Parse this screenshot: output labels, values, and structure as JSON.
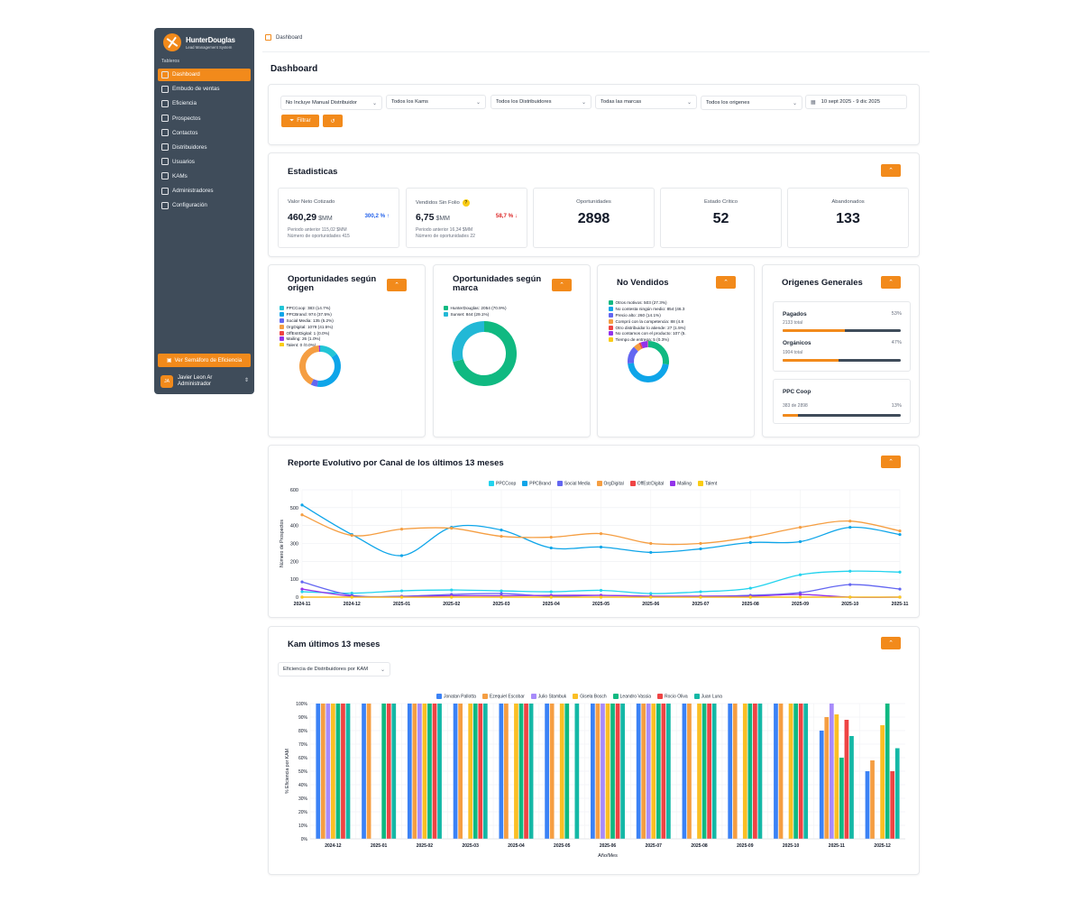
{
  "sidebar": {
    "brand_name": "HunterDouglas",
    "brand_sub": "Lead Management System",
    "section": "Tableros",
    "items": [
      {
        "label": "Dashboard",
        "icon": "dashboard-icon"
      },
      {
        "label": "Embudo de ventas",
        "icon": "filter-icon"
      },
      {
        "label": "Eficiencia",
        "icon": "trending-up-icon"
      },
      {
        "label": "Prospectos",
        "icon": "id-card-icon"
      },
      {
        "label": "Contactos",
        "icon": "contacts-icon"
      },
      {
        "label": "Distribuidores",
        "icon": "map-icon"
      },
      {
        "label": "Usuarios",
        "icon": "users-icon"
      },
      {
        "label": "KAMs",
        "icon": "user-icon"
      },
      {
        "label": "Administradores",
        "icon": "user-cog-icon"
      },
      {
        "label": "Configuración",
        "icon": "gear-icon"
      }
    ],
    "semaforo_label": "Ver Semáforo de Eficiencia",
    "user": {
      "initials": "JA",
      "name": "Javier Leon Ar",
      "role": "Administrador"
    }
  },
  "header": {
    "breadcrumb": "Dashboard",
    "title": "Dashboard"
  },
  "filters": {
    "items": [
      "No Incluye Manual Distribuidor",
      "Todos los Kams",
      "Todos los Distribuidores",
      "Todas las marcas",
      "Todos los origenes"
    ],
    "date_range": "10 sept 2025 - 9 dic 2025",
    "filter_label": "Filtrar"
  },
  "stats": {
    "title": "Estadisticas",
    "cards": [
      {
        "label": "Valor Neto Cotizado",
        "value": "460,29",
        "unit": "$MM",
        "change": "300,2 %",
        "change_color": "#2563eb",
        "arrow": "↑",
        "prev": "Periodo anterior 115,02 $MM",
        "ops": "Número de oportunidades 415"
      },
      {
        "label": "Vendidos Sin Folio",
        "badge": "?",
        "value": "6,75",
        "unit": "$MM",
        "change": "58,7 %",
        "change_color": "#dc2626",
        "arrow": "↓",
        "prev": "Periodo anterior 16,34 $MM",
        "ops": "Número de oportunidades 22"
      },
      {
        "label": "Oportunidades",
        "value": "2898"
      },
      {
        "label": "Estado Crítico",
        "value": "52"
      },
      {
        "label": "Abandonados",
        "value": "133"
      }
    ]
  },
  "oportunidades_origen": {
    "title_line1": "Oportunidades según",
    "title_line2": "origen",
    "legend": [
      {
        "label": "PPCCoop: 383 (14.7%)",
        "color": "#22c5d6",
        "value": 383
      },
      {
        "label": "PPCBrand: 974 (37.5%)",
        "color": "#0ea5e9",
        "value": 974
      },
      {
        "label": "Social Media: 135 (5.2%)",
        "color": "#6366f1",
        "value": 135
      },
      {
        "label": "OrgDigital: 1079 (41.5%)",
        "color": "#f59e42",
        "value": 1079
      },
      {
        "label": "OffEstrDigital: 1 (0.0%)",
        "color": "#ef4444",
        "value": 1
      },
      {
        "label": "Mailing: 26 (1.0%)",
        "color": "#9333ea",
        "value": 26
      },
      {
        "label": "Talent: 0 (0.0%)",
        "color": "#facc15",
        "value": 0
      }
    ]
  },
  "oportunidades_marca": {
    "title_line1": "Oportunidades según",
    "title_line2": "marca",
    "legend": [
      {
        "label": "HunterDouglas: 2054 (70.9%)",
        "color": "#10b981",
        "value": 2054
      },
      {
        "label": "Sunset: 844 (29.1%)",
        "color": "#22b8d6",
        "value": 844
      }
    ]
  },
  "no_vendidos": {
    "title": "No Vendidos",
    "legend": [
      {
        "label": "Otros motivos: 503 (27.3%)",
        "color": "#10b981",
        "value": 503
      },
      {
        "label": "No contesta ningún medio: 854 (46.3",
        "color": "#0ea5e9",
        "value": 854
      },
      {
        "label": "Precio alto: 260 (14.1%)",
        "color": "#6366f1",
        "value": 260
      },
      {
        "label": "Compró con la competencia: 88 (4.8",
        "color": "#f59e42",
        "value": 88
      },
      {
        "label": "Otro distribuidor lo atiende: 27 (1.5%)",
        "color": "#ef4444",
        "value": 27
      },
      {
        "label": "No contamos con el producto: 107 (5.",
        "color": "#9333ea",
        "value": 107
      },
      {
        "label": "Tiempo de entrega: 5 (0.3%)",
        "color": "#facc15",
        "value": 5
      }
    ]
  },
  "origenes": {
    "title": "Origenes Generales",
    "rows": [
      {
        "name": "Pagados",
        "pct": "53%",
        "total": "2133 total",
        "fill": 0.53
      },
      {
        "name": "Orgánicos",
        "pct": "47%",
        "total": "1904 total",
        "fill": 0.47
      }
    ],
    "coop": {
      "name": "PPC Coop",
      "detail": "383 de 2898",
      "pct": "13%",
      "fill": 0.13
    }
  },
  "evolutivo": {
    "title": "Reporte Evolutivo por Canal de los últimos 13 meses",
    "ylabel": "Número de Prospectos",
    "y_ticks": [
      "0",
      "100",
      "200",
      "300",
      "400",
      "500",
      "600"
    ],
    "categories": [
      "2024-11",
      "2024-12",
      "2025-01",
      "2025-02",
      "2025-03",
      "2025-04",
      "2025-05",
      "2025-06",
      "2025-07",
      "2025-08",
      "2025-09",
      "2025-10",
      "2025-11"
    ]
  },
  "kam": {
    "title": "Kam últimos 13 meses",
    "select": "Eficiencia de Distribuidores por KAM",
    "ylabel": "% Eficiencia por KAM",
    "xlabel": "Año/Mes",
    "y_ticks": [
      "0%",
      "10%",
      "20%",
      "30%",
      "40%",
      "50%",
      "60%",
      "70%",
      "80%",
      "90%",
      "100%"
    ],
    "categories": [
      "2024-12",
      "2025-01",
      "2025-02",
      "2025-03",
      "2025-04",
      "2025-05",
      "2025-06",
      "2025-07",
      "2025-08",
      "2025-09",
      "2025-10",
      "2025-11",
      "2025-12"
    ]
  },
  "chart_data": [
    {
      "type": "line",
      "title": "Reporte Evolutivo por Canal de los últimos 13 meses",
      "xlabel": "",
      "ylabel": "Número de Prospectos",
      "ylim": [
        0,
        600
      ],
      "grid": true,
      "legend_placement": "top",
      "x": [
        "2024-11",
        "2024-12",
        "2025-01",
        "2025-02",
        "2025-03",
        "2025-04",
        "2025-05",
        "2025-06",
        "2025-07",
        "2025-08",
        "2025-09",
        "2025-10",
        "2025-11"
      ],
      "series": [
        {
          "name": "PPCCoop",
          "color": "#22d3ee",
          "values": [
            30,
            22,
            35,
            40,
            35,
            30,
            38,
            20,
            30,
            50,
            125,
            145,
            140
          ]
        },
        {
          "name": "PPCBrand",
          "color": "#0ea5e9",
          "values": [
            515,
            350,
            232,
            390,
            375,
            275,
            280,
            250,
            270,
            305,
            310,
            390,
            350
          ]
        },
        {
          "name": "Social Media",
          "color": "#6366f1",
          "values": [
            85,
            10,
            5,
            15,
            20,
            5,
            10,
            5,
            5,
            10,
            25,
            70,
            45
          ]
        },
        {
          "name": "OrgDigital",
          "color": "#f59e42",
          "values": [
            460,
            345,
            380,
            385,
            340,
            335,
            355,
            300,
            300,
            335,
            390,
            425,
            370
          ]
        },
        {
          "name": "OffEstrDigital",
          "color": "#ef4444",
          "values": [
            0,
            0,
            0,
            0,
            0,
            0,
            0,
            0,
            0,
            0,
            0,
            0,
            0
          ]
        },
        {
          "name": "Mailing",
          "color": "#9333ea",
          "values": [
            45,
            5,
            3,
            8,
            8,
            10,
            10,
            5,
            5,
            5,
            15,
            0,
            0
          ]
        },
        {
          "name": "Talent",
          "color": "#facc15",
          "values": [
            0,
            0,
            0,
            0,
            0,
            0,
            0,
            0,
            0,
            0,
            0,
            0,
            0
          ]
        }
      ]
    },
    {
      "type": "bar",
      "title": "Kam últimos 13 meses",
      "xlabel": "Año/Mes",
      "ylabel": "% Eficiencia por KAM",
      "ylim": [
        0,
        100
      ],
      "grid": true,
      "legend_placement": "top",
      "categories": [
        "2024-12",
        "2025-01",
        "2025-02",
        "2025-03",
        "2025-04",
        "2025-05",
        "2025-06",
        "2025-07",
        "2025-08",
        "2025-09",
        "2025-10",
        "2025-11",
        "2025-12"
      ],
      "series": [
        {
          "name": "Jonatan Pallotta",
          "color": "#3b82f6",
          "values": [
            100,
            100,
            100,
            100,
            100,
            100,
            100,
            100,
            100,
            100,
            100,
            80,
            50
          ]
        },
        {
          "name": "Ezequiel Escobar",
          "color": "#f59e42",
          "values": [
            100,
            100,
            100,
            100,
            100,
            100,
            100,
            100,
            100,
            100,
            100,
            90,
            58
          ]
        },
        {
          "name": "Julio Stambuk",
          "color": "#a78bfa",
          "values": [
            100,
            0,
            100,
            0,
            0,
            0,
            100,
            100,
            0,
            0,
            0,
            100,
            0
          ]
        },
        {
          "name": "Gisela Bosch",
          "color": "#fbbf24",
          "values": [
            100,
            0,
            100,
            100,
            100,
            100,
            100,
            100,
            100,
            100,
            100,
            92,
            84
          ]
        },
        {
          "name": "Leandro Vassia",
          "color": "#10b981",
          "values": [
            100,
            100,
            100,
            100,
            100,
            100,
            100,
            100,
            100,
            100,
            100,
            60,
            100
          ]
        },
        {
          "name": "Rocio Oliva",
          "color": "#ef4444",
          "values": [
            100,
            100,
            100,
            100,
            100,
            0,
            100,
            100,
            100,
            100,
            100,
            88,
            50
          ]
        },
        {
          "name": "Juan Luna",
          "color": "#14b8a6",
          "values": [
            100,
            100,
            100,
            100,
            100,
            100,
            100,
            100,
            100,
            100,
            100,
            76,
            67
          ]
        }
      ]
    }
  ]
}
